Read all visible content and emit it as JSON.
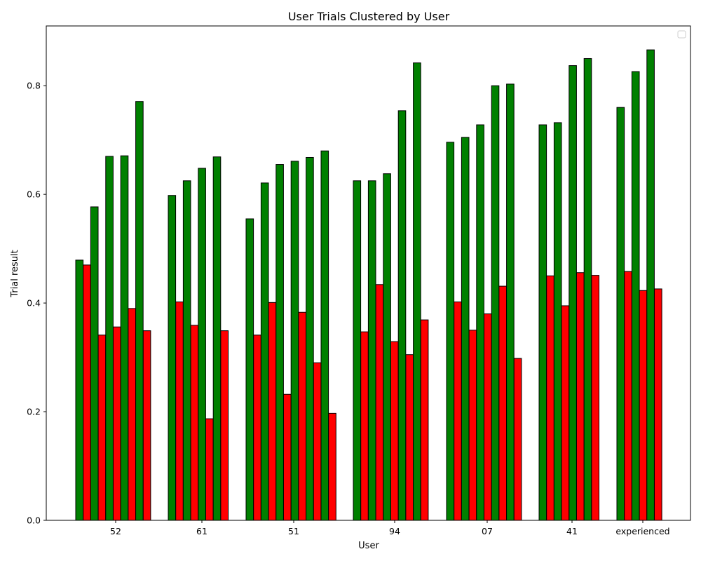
{
  "chart_data": {
    "type": "bar",
    "title": "User Trials Clustered by User",
    "xlabel": "User",
    "ylabel": "Trial result",
    "ylim": [
      0,
      0.91
    ],
    "yticks": [
      0.0,
      0.2,
      0.4,
      0.6,
      0.8
    ],
    "ytick_labels": [
      "0.0",
      "0.2",
      "0.4",
      "0.6",
      "0.8"
    ],
    "grid": false,
    "legend": {
      "placement": "top-right",
      "entries": []
    },
    "colors": {
      "success": "#008000",
      "failure": "#ff0000",
      "edge": "#000000"
    },
    "groups": [
      {
        "label": "52",
        "bars": [
          {
            "color": "success",
            "value": 0.479
          },
          {
            "color": "failure",
            "value": 0.47
          },
          {
            "color": "success",
            "value": 0.577
          },
          {
            "color": "failure",
            "value": 0.341
          },
          {
            "color": "success",
            "value": 0.67
          },
          {
            "color": "failure",
            "value": 0.356
          },
          {
            "color": "success",
            "value": 0.671
          },
          {
            "color": "failure",
            "value": 0.39
          },
          {
            "color": "success",
            "value": 0.771
          },
          {
            "color": "failure",
            "value": 0.349
          }
        ]
      },
      {
        "label": "61",
        "bars": [
          {
            "color": "success",
            "value": 0.598
          },
          {
            "color": "failure",
            "value": 0.402
          },
          {
            "color": "success",
            "value": 0.625
          },
          {
            "color": "failure",
            "value": 0.359
          },
          {
            "color": "success",
            "value": 0.648
          },
          {
            "color": "failure",
            "value": 0.187
          },
          {
            "color": "success",
            "value": 0.669
          },
          {
            "color": "failure",
            "value": 0.349
          }
        ]
      },
      {
        "label": "51",
        "bars": [
          {
            "color": "success",
            "value": 0.555
          },
          {
            "color": "failure",
            "value": 0.341
          },
          {
            "color": "success",
            "value": 0.621
          },
          {
            "color": "failure",
            "value": 0.401
          },
          {
            "color": "success",
            "value": 0.655
          },
          {
            "color": "failure",
            "value": 0.232
          },
          {
            "color": "success",
            "value": 0.661
          },
          {
            "color": "failure",
            "value": 0.383
          },
          {
            "color": "success",
            "value": 0.668
          },
          {
            "color": "failure",
            "value": 0.29
          },
          {
            "color": "success",
            "value": 0.68
          },
          {
            "color": "failure",
            "value": 0.197
          }
        ]
      },
      {
        "label": "94",
        "bars": [
          {
            "color": "success",
            "value": 0.625
          },
          {
            "color": "failure",
            "value": 0.347
          },
          {
            "color": "success",
            "value": 0.625
          },
          {
            "color": "failure",
            "value": 0.434
          },
          {
            "color": "success",
            "value": 0.638
          },
          {
            "color": "failure",
            "value": 0.329
          },
          {
            "color": "success",
            "value": 0.754
          },
          {
            "color": "failure",
            "value": 0.305
          },
          {
            "color": "success",
            "value": 0.842
          },
          {
            "color": "failure",
            "value": 0.369
          }
        ]
      },
      {
        "label": "07",
        "bars": [
          {
            "color": "success",
            "value": 0.696
          },
          {
            "color": "failure",
            "value": 0.402
          },
          {
            "color": "success",
            "value": 0.705
          },
          {
            "color": "failure",
            "value": 0.35
          },
          {
            "color": "success",
            "value": 0.728
          },
          {
            "color": "failure",
            "value": 0.38
          },
          {
            "color": "success",
            "value": 0.8
          },
          {
            "color": "failure",
            "value": 0.431
          },
          {
            "color": "success",
            "value": 0.803
          },
          {
            "color": "failure",
            "value": 0.298
          }
        ]
      },
      {
        "label": "41",
        "bars": [
          {
            "color": "success",
            "value": 0.728
          },
          {
            "color": "failure",
            "value": 0.45
          },
          {
            "color": "success",
            "value": 0.732
          },
          {
            "color": "failure",
            "value": 0.395
          },
          {
            "color": "success",
            "value": 0.837
          },
          {
            "color": "failure",
            "value": 0.456
          },
          {
            "color": "success",
            "value": 0.85
          },
          {
            "color": "failure",
            "value": 0.451
          }
        ]
      },
      {
        "label": "experienced",
        "bars": [
          {
            "color": "success",
            "value": 0.76
          },
          {
            "color": "failure",
            "value": 0.458
          },
          {
            "color": "success",
            "value": 0.826
          },
          {
            "color": "failure",
            "value": 0.423
          },
          {
            "color": "success",
            "value": 0.866
          },
          {
            "color": "failure",
            "value": 0.426
          }
        ]
      }
    ]
  }
}
